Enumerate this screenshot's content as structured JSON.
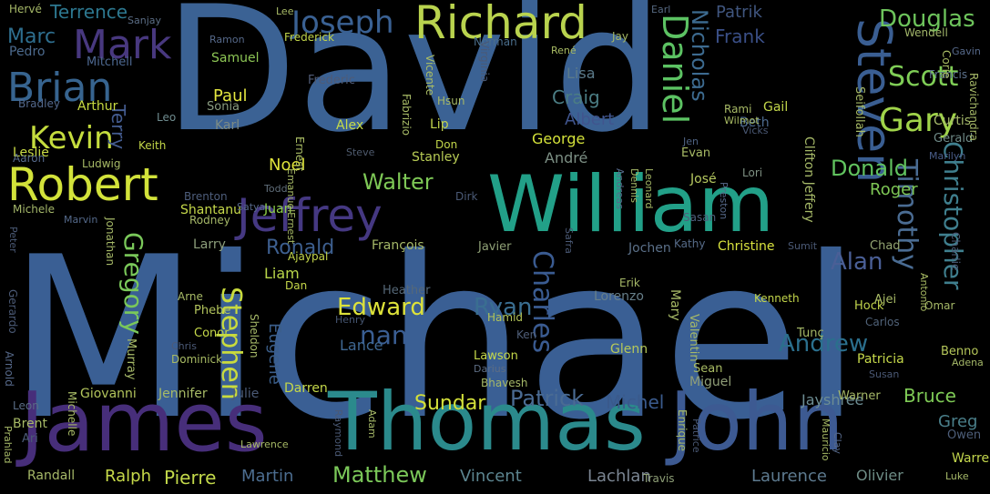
{
  "background": "#000000",
  "words": [
    {
      "text": "Michael",
      "color": "#3a5f94"
    },
    {
      "text": "David",
      "color": "#3b6294"
    },
    {
      "text": "James",
      "color": "#472e7a"
    },
    {
      "text": "Thomas",
      "color": "#2b8a8c"
    },
    {
      "text": "John",
      "color": "#3d5a92"
    },
    {
      "text": "William",
      "color": "#22a088"
    },
    {
      "text": "Richard",
      "color": "#b9d34e"
    },
    {
      "text": "Robert",
      "color": "#d2e23a"
    },
    {
      "text": "Jeffrey",
      "color": "#453882"
    },
    {
      "text": "Steven",
      "color": "#3a5e92"
    },
    {
      "text": "Daniel",
      "color": "#5cc263"
    },
    {
      "text": "Mark",
      "color": "#48387f"
    },
    {
      "text": "Brian",
      "color": "#37648f"
    },
    {
      "text": "Joseph",
      "color": "#3a6193"
    },
    {
      "text": "Kevin",
      "color": "#c5dd3e"
    },
    {
      "text": "Gary",
      "color": "#a0d44a"
    },
    {
      "text": "Scott",
      "color": "#7fcd56"
    },
    {
      "text": "Timothy",
      "color": "#4a6c93"
    },
    {
      "text": "Christopher",
      "color": "#3f7f8e"
    },
    {
      "text": "Douglas",
      "color": "#6dc35b"
    },
    {
      "text": "Nicholas",
      "color": "#3d6b90"
    },
    {
      "text": "Charles",
      "color": "#3a5b91"
    },
    {
      "text": "Stephen",
      "color": "#c9db3d"
    },
    {
      "text": "Gregory",
      "color": "#7ac85a"
    },
    {
      "text": "Ronald",
      "color": "#3d5f8f"
    },
    {
      "text": "Walter",
      "color": "#7ec856"
    },
    {
      "text": "Donald",
      "color": "#61c35f"
    },
    {
      "text": "Alan",
      "color": "#4a5f96"
    },
    {
      "text": "Andrew",
      "color": "#2b6f8d"
    },
    {
      "text": "Edward",
      "color": "#dde23a"
    },
    {
      "text": "nan",
      "color": "#3a5e93"
    },
    {
      "text": "Ryan",
      "color": "#3a6e91"
    },
    {
      "text": "Patrick",
      "color": "#4a6b93"
    },
    {
      "text": "Matthew",
      "color": "#7bc859"
    },
    {
      "text": "Sundar",
      "color": "#d3e03a"
    },
    {
      "text": "Bruce",
      "color": "#7fcb56"
    },
    {
      "text": "Terrence",
      "color": "#2d7890"
    },
    {
      "text": "Marc",
      "color": "#2e6e8e"
    },
    {
      "text": "Frank",
      "color": "#3a4f87"
    },
    {
      "text": "Patrik",
      "color": "#40567f"
    },
    {
      "text": "Albert",
      "color": "#40558e"
    },
    {
      "text": "Lisa",
      "color": "#5b7a8a"
    },
    {
      "text": "Craig",
      "color": "#4b7d84"
    },
    {
      "text": "George",
      "color": "#d4e23a"
    },
    {
      "text": "Paul",
      "color": "#e3e640"
    },
    {
      "text": "Noel",
      "color": "#dfe33a"
    },
    {
      "text": "Juan",
      "color": "#8ed048"
    },
    {
      "text": "Roger",
      "color": "#7ec755"
    },
    {
      "text": "Liam",
      "color": "#b9d64a"
    },
    {
      "text": "Alex",
      "color": "#c7dc48"
    },
    {
      "text": "Lance",
      "color": "#3f6893"
    },
    {
      "text": "Eugene",
      "color": "#3b5e8a"
    },
    {
      "text": "Michel",
      "color": "#3a5a8c"
    },
    {
      "text": "Greg",
      "color": "#4a7f8a"
    },
    {
      "text": "Laurence",
      "color": "#5d7a8f"
    },
    {
      "text": "Lachlan",
      "color": "#7a8592"
    },
    {
      "text": "Vincent",
      "color": "#5c8590"
    },
    {
      "text": "Olivier",
      "color": "#6e8d86"
    },
    {
      "text": "Ralph",
      "color": "#c6d949"
    },
    {
      "text": "Pierre",
      "color": "#c2d84a"
    },
    {
      "text": "Martin",
      "color": "#4c6d90"
    },
    {
      "text": "Jayshree",
      "color": "#6d8d93"
    },
    {
      "text": "Christine",
      "color": "#d8e23e"
    },
    {
      "text": "Leslie",
      "color": "#c9db44"
    },
    {
      "text": "Terry",
      "color": "#445c90"
    },
    {
      "text": "Arthur",
      "color": "#c8db42"
    },
    {
      "text": "Bradley",
      "color": "#53688c"
    },
    {
      "text": "Pedro",
      "color": "#4c6a8d"
    },
    {
      "text": "Mitchell",
      "color": "#4d6890"
    },
    {
      "text": "Samuel",
      "color": "#8dc655"
    },
    {
      "text": "Sonia",
      "color": "#8a9c81"
    },
    {
      "text": "Karl",
      "color": "#7c8b85"
    },
    {
      "text": "Leo",
      "color": "#6f8c8f"
    },
    {
      "text": "Keith",
      "color": "#c3d748"
    },
    {
      "text": "Frederick",
      "color": "#c1d549"
    },
    {
      "text": "Frederic",
      "color": "#505b75"
    },
    {
      "text": "Norman",
      "color": "#4a6e8c"
    },
    {
      "text": "Jay",
      "color": "#a5b865"
    },
    {
      "text": "Wendell",
      "color": "#a2b66a"
    },
    {
      "text": "Francis",
      "color": "#5b708a"
    },
    {
      "text": "Gail",
      "color": "#c3d74a"
    },
    {
      "text": "Beth",
      "color": "#4d6a8e"
    },
    {
      "text": "Curtis",
      "color": "#a5b96a"
    },
    {
      "text": "Gerald",
      "color": "#6f8a87"
    },
    {
      "text": "Marilyn",
      "color": "#4a5e8a"
    },
    {
      "text": "Evan",
      "color": "#a8bb66"
    },
    {
      "text": "José",
      "color": "#b6c960"
    },
    {
      "text": "Lori",
      "color": "#7e9183"
    },
    {
      "text": "Jen",
      "color": "#4e6282"
    },
    {
      "text": "Don",
      "color": "#c2d64a"
    },
    {
      "text": "Stanley",
      "color": "#b8cc55"
    },
    {
      "text": "André",
      "color": "#7c8f84"
    },
    {
      "text": "Lip",
      "color": "#c0d24d"
    },
    {
      "text": "Todd",
      "color": "#606e7a"
    },
    {
      "text": "Steve",
      "color": "#4f5b6e"
    },
    {
      "text": "Brenton",
      "color": "#4e5e7c"
    },
    {
      "text": "Shantanu",
      "color": "#c6d94a"
    },
    {
      "text": "Satya",
      "color": "#56688a"
    },
    {
      "text": "Rodney",
      "color": "#a6b968"
    },
    {
      "text": "Michele",
      "color": "#a4b76a"
    },
    {
      "text": "Marvin",
      "color": "#556a8b"
    },
    {
      "text": "Larry",
      "color": "#8c9e7b"
    },
    {
      "text": "François",
      "color": "#a6b969"
    },
    {
      "text": "Javier",
      "color": "#8fa076"
    },
    {
      "text": "Jochen",
      "color": "#5b7089"
    },
    {
      "text": "Kathy",
      "color": "#566b88"
    },
    {
      "text": "Sasan",
      "color": "#4e5f7c"
    },
    {
      "text": "Chad",
      "color": "#94a673"
    },
    {
      "text": "Ajaypal",
      "color": "#c4d64b"
    },
    {
      "text": "Dan",
      "color": "#c6d84a"
    },
    {
      "text": "Heather",
      "color": "#566878"
    },
    {
      "text": "Hamid",
      "color": "#b3c558"
    },
    {
      "text": "Lorenzo",
      "color": "#677f8a"
    },
    {
      "text": "Erik",
      "color": "#a6b968"
    },
    {
      "text": "Kenneth",
      "color": "#c3d64b"
    },
    {
      "text": "Ajei",
      "color": "#a8bb66"
    },
    {
      "text": "Omar",
      "color": "#a6b968"
    },
    {
      "text": "Hock",
      "color": "#c1d44c"
    },
    {
      "text": "Carlos",
      "color": "#506278"
    },
    {
      "text": "Benno",
      "color": "#b5c75a"
    },
    {
      "text": "Adena",
      "color": "#a5b868"
    },
    {
      "text": "Phebe",
      "color": "#b2c45c"
    },
    {
      "text": "Conor",
      "color": "#c5d84a"
    },
    {
      "text": "Chris",
      "color": "#4c5b78"
    },
    {
      "text": "Dominick",
      "color": "#a9bc64"
    },
    {
      "text": "Henry",
      "color": "#455570"
    },
    {
      "text": "Ken",
      "color": "#4f5e78"
    },
    {
      "text": "Glenn",
      "color": "#b6c95a"
    },
    {
      "text": "Lawson",
      "color": "#c5d84a"
    },
    {
      "text": "Darius",
      "color": "#5d6d84"
    },
    {
      "text": "Bhavesh",
      "color": "#a5b868"
    },
    {
      "text": "Sean",
      "color": "#a9bc64"
    },
    {
      "text": "Miguel",
      "color": "#909f78"
    },
    {
      "text": "Patricia",
      "color": "#c6d94a"
    },
    {
      "text": "Susan",
      "color": "#4a5874"
    },
    {
      "text": "Warner",
      "color": "#a6b968"
    },
    {
      "text": "Owen",
      "color": "#4d5e79"
    },
    {
      "text": "Warren",
      "color": "#c2d54c"
    },
    {
      "text": "Luke",
      "color": "#a6b969"
    },
    {
      "text": "Travis",
      "color": "#8e9f77"
    },
    {
      "text": "Darren",
      "color": "#c5d84a"
    },
    {
      "text": "Giovanni",
      "color": "#b2c45c"
    },
    {
      "text": "Jennifer",
      "color": "#a7ba66"
    },
    {
      "text": "Julie",
      "color": "#4b5a76"
    },
    {
      "text": "Lawrence",
      "color": "#a7ba66"
    },
    {
      "text": "Brent",
      "color": "#a7ba66"
    },
    {
      "text": "Ari",
      "color": "#4b5a76"
    },
    {
      "text": "Randall",
      "color": "#a6b968"
    },
    {
      "text": "Leon",
      "color": "#5a6c86"
    },
    {
      "text": "Jonathan",
      "color": "#a6b968"
    },
    {
      "text": "Aaron",
      "color": "#56698a"
    },
    {
      "text": "Ludwig",
      "color": "#a7ba66"
    },
    {
      "text": "Hervé",
      "color": "#a6b968"
    },
    {
      "text": "Sanjay",
      "color": "#5b6d85"
    },
    {
      "text": "Ramon",
      "color": "#56698a"
    },
    {
      "text": "Lee",
      "color": "#a7ba66"
    },
    {
      "text": "René",
      "color": "#a9bc64"
    },
    {
      "text": "Earl",
      "color": "#55677f"
    },
    {
      "text": "Gavin",
      "color": "#56698a"
    },
    {
      "text": "Rami",
      "color": "#a7ba66"
    },
    {
      "text": "Wilmot",
      "color": "#a9bc64"
    },
    {
      "text": "Vicks",
      "color": "#4a5874"
    },
    {
      "text": "Peter",
      "color": "#4b5a76"
    },
    {
      "text": "Arne",
      "color": "#a7ba66"
    },
    {
      "text": "Murray",
      "color": "#a6b968"
    },
    {
      "text": "Dirk",
      "color": "#4b5a76"
    },
    {
      "text": "Sumit",
      "color": "#4b5a76"
    },
    {
      "text": "Charlie",
      "color": "#4b5a76"
    },
    {
      "text": "Gerardo",
      "color": "#4b5a76"
    },
    {
      "text": "Arnold",
      "color": "#56698a"
    },
    {
      "text": "Prahlad",
      "color": "#a6b968"
    },
    {
      "text": "Michelle",
      "color": "#a7ba66"
    },
    {
      "text": "Tunç",
      "color": "#a6b968"
    },
    {
      "text": "Ernest",
      "color": "#a9bc64"
    },
    {
      "text": "EmanuelErnest",
      "color": "#a7ba66"
    },
    {
      "text": "Fabrizio",
      "color": "#a7ba66"
    },
    {
      "text": "Vicente",
      "color": "#a9bc64"
    },
    {
      "text": "Hsun",
      "color": "#a6b968"
    },
    {
      "text": "Virginia",
      "color": "#4b5a76"
    },
    {
      "text": "Mary",
      "color": "#a7ba66"
    },
    {
      "text": "Valentin",
      "color": "#a6b968"
    },
    {
      "text": "Clifton Jeffery",
      "color": "#a6b968"
    },
    {
      "text": "Seifollah",
      "color": "#a7ba66"
    },
    {
      "text": "Corie",
      "color": "#a9bc64"
    },
    {
      "text": "Ravichandra",
      "color": "#a6b968"
    },
    {
      "text": "Antonio",
      "color": "#a9bc64"
    },
    {
      "text": "Andreas",
      "color": "#56698a"
    },
    {
      "text": "Dennis",
      "color": "#a6b968"
    },
    {
      "text": "Leonard",
      "color": "#a7ba66"
    },
    {
      "text": "Preston",
      "color": "#56698a"
    },
    {
      "text": "Safra",
      "color": "#4b5a76"
    },
    {
      "text": "Sheldon",
      "color": "#a6b968"
    },
    {
      "text": "Raymond",
      "color": "#4b5a76"
    },
    {
      "text": "Adam",
      "color": "#a6b968"
    },
    {
      "text": "Enrique",
      "color": "#a6b968"
    },
    {
      "text": "Patrice",
      "color": "#4b5a76"
    },
    {
      "text": "Mauricio",
      "color": "#a7ba66"
    },
    {
      "text": "Clay",
      "color": "#56698a"
    }
  ]
}
